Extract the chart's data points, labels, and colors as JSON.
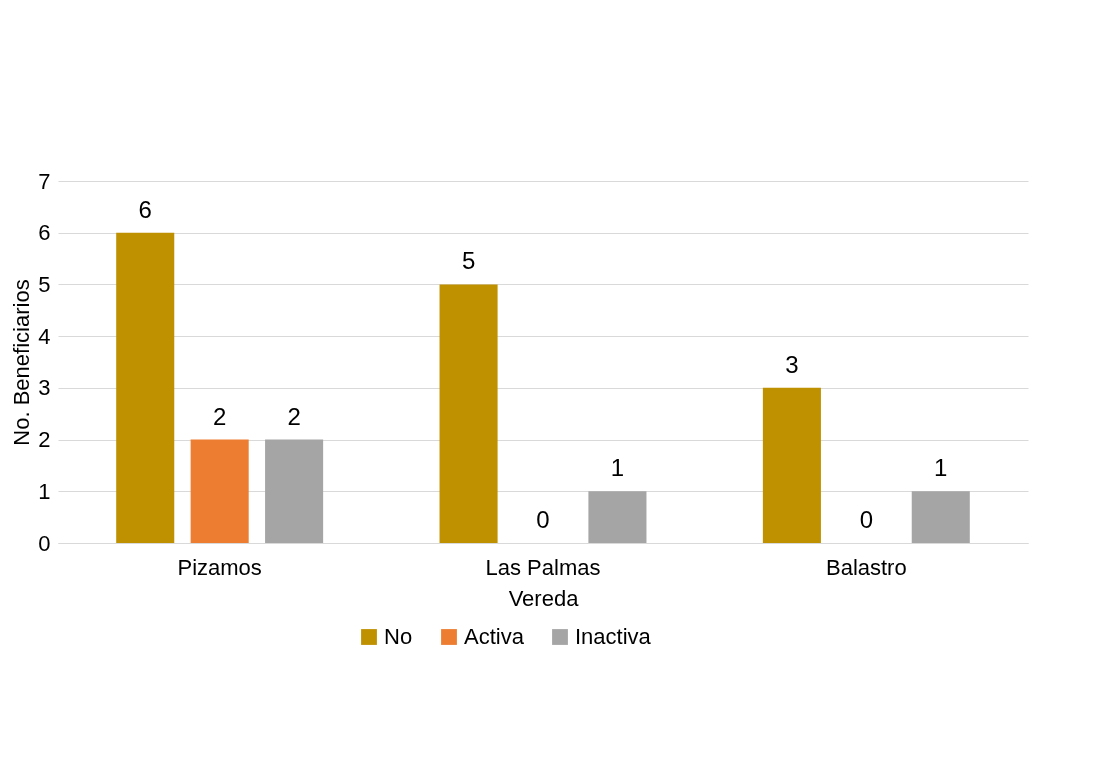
{
  "chart_data": {
    "type": "bar",
    "xlabel": "Vereda",
    "ylabel": "No. Beneficiarios",
    "categories": [
      "Pizamos",
      "Las Palmas",
      "Balastro"
    ],
    "series": [
      {
        "name": "No",
        "color": "#bf9000",
        "values": [
          6,
          5,
          3
        ]
      },
      {
        "name": "Activa",
        "color": "#ed7d31",
        "values": [
          2,
          0,
          0
        ]
      },
      {
        "name": "Inactiva",
        "color": "#a5a5a5",
        "values": [
          2,
          1,
          1
        ]
      }
    ],
    "ylim": [
      0,
      7
    ],
    "yticks": [
      0,
      1,
      2,
      3,
      4,
      5,
      6,
      7
    ],
    "grid": "y",
    "legend": "bottom",
    "data_labels": true
  }
}
